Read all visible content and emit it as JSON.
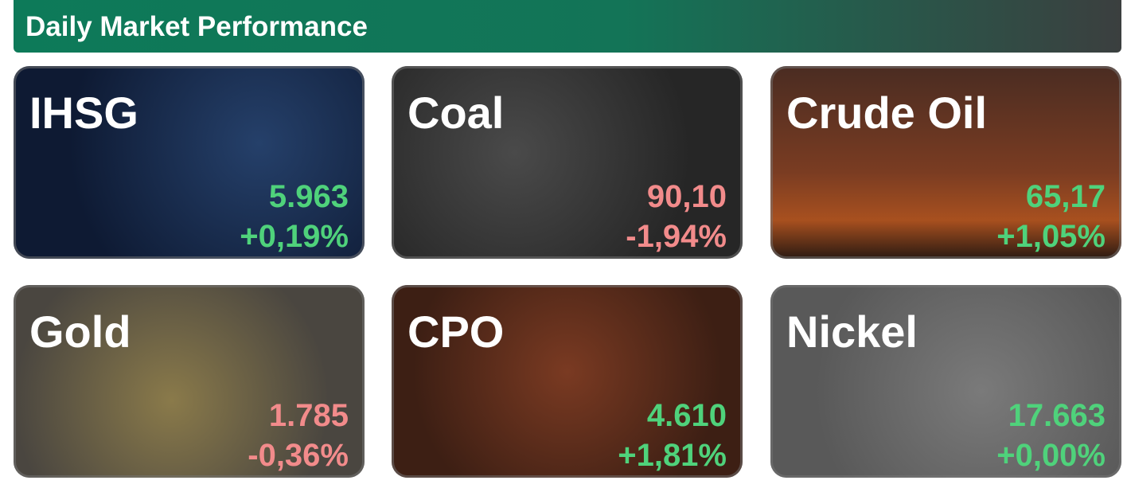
{
  "header": {
    "title": "Daily Market Performance"
  },
  "cards": [
    {
      "name": "IHSG",
      "price": "5.963",
      "change": "+0,19%",
      "color": "#4fd27b"
    },
    {
      "name": "Coal",
      "price": "90,10",
      "change": "-1,94%",
      "color": "#f28b8b"
    },
    {
      "name": "Crude Oil",
      "price": "65,17",
      "change": "+1,05%",
      "color": "#4fd27b"
    },
    {
      "name": "Gold",
      "price": "1.785",
      "change": "-0,36%",
      "color": "#f28b8b"
    },
    {
      "name": "CPO",
      "price": "4.610",
      "change": "+1,81%",
      "color": "#4fd27b"
    },
    {
      "name": "Nickel",
      "price": "17.663",
      "change": "+0,00%",
      "color": "#4fd27b"
    }
  ]
}
